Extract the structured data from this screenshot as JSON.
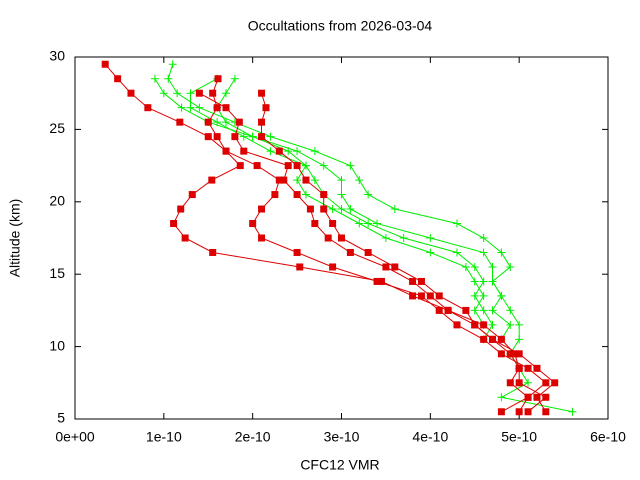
{
  "chart_data": {
    "type": "line",
    "title": "Occultations from 2026-03-04",
    "xlabel": "CFC12 VMR",
    "ylabel": "Altitude (km)",
    "xlim": [
      0,
      6e-10
    ],
    "ylim": [
      5,
      30
    ],
    "xticks": [
      {
        "value": 0,
        "label": "0e+00"
      },
      {
        "value": 1e-10,
        "label": "1e-10"
      },
      {
        "value": 2e-10,
        "label": "2e-10"
      },
      {
        "value": 3e-10,
        "label": "3e-10"
      },
      {
        "value": 4e-10,
        "label": "4e-10"
      },
      {
        "value": 5e-10,
        "label": "5e-10"
      },
      {
        "value": 6e-10,
        "label": "6e-10"
      }
    ],
    "yticks": [
      5,
      10,
      15,
      20,
      25,
      30
    ],
    "grid": false,
    "series": [
      {
        "color": "#00ee00",
        "marker": "plus",
        "x": [
          9e-11,
          1e-10,
          1.2e-10,
          1.5e-10,
          2e-10,
          2.5e-10,
          2.8e-10,
          3e-10,
          3e-10,
          3.1e-10,
          3.4e-10,
          4e-10,
          4.6e-10,
          4.7e-10,
          4.7e-10,
          4.8e-10,
          4.9e-10,
          5e-10,
          5e-10,
          4.9e-10,
          5e-10,
          5.1e-10,
          4.8e-10,
          5.6e-10
        ],
        "y": [
          28.5,
          27.5,
          26.5,
          25.5,
          24.5,
          23.5,
          22.5,
          21.5,
          20.5,
          19.5,
          18.5,
          17.5,
          16.5,
          15.5,
          14.5,
          13.5,
          12.5,
          11.5,
          10.5,
          9.5,
          8.5,
          7.5,
          6.5,
          5.5
        ]
      },
      {
        "color": "#00ee00",
        "marker": "plus",
        "x": [
          1.1e-10,
          1.05e-10,
          1.15e-10,
          1.4e-10,
          1.8e-10,
          2.2e-10,
          2.7e-10,
          3.1e-10,
          3.2e-10,
          3.3e-10,
          3.6e-10,
          4.3e-10,
          4.6e-10,
          4.8e-10,
          4.9e-10,
          4.7e-10,
          4.8e-10,
          4.7e-10,
          4.9e-10,
          4.8e-10
        ],
        "y": [
          29.5,
          28.5,
          27.5,
          26.5,
          25.5,
          24.5,
          23.5,
          22.5,
          21.5,
          20.5,
          19.5,
          18.5,
          17.5,
          16.5,
          15.5,
          14.5,
          13.5,
          12.5,
          11.5,
          10.5
        ]
      },
      {
        "color": "#00ee00",
        "marker": "plus",
        "x": [
          1.6e-10,
          1.3e-10,
          1.3e-10,
          1.6e-10,
          1.9e-10,
          2.2e-10,
          2.6e-10,
          2.7e-10,
          2.8e-10,
          3e-10,
          3.3e-10,
          3.7e-10,
          4.3e-10,
          4.5e-10,
          4.6e-10,
          4.5e-10,
          4.6e-10,
          4.7e-10,
          4.6e-10
        ],
        "y": [
          28.5,
          27.5,
          26.5,
          25.5,
          24.5,
          23.5,
          22.5,
          21.5,
          20.5,
          19.5,
          18.5,
          17.5,
          16.5,
          15.5,
          14.5,
          13.5,
          12.5,
          11.5,
          10.5
        ]
      },
      {
        "color": "#00ee00",
        "marker": "plus",
        "x": [
          1.8e-10,
          1.7e-10,
          1.6e-10,
          1.7e-10,
          2e-10,
          2.4e-10,
          2.6e-10,
          2.5e-10,
          2.6e-10,
          2.9e-10,
          3.2e-10,
          3.5e-10,
          4e-10,
          4.4e-10,
          4.5e-10,
          4.6e-10,
          4.5e-10,
          4.6e-10
        ],
        "y": [
          28.5,
          27.5,
          26.5,
          25.5,
          24.5,
          23.5,
          22.5,
          21.5,
          20.5,
          19.5,
          18.5,
          17.5,
          16.5,
          15.5,
          14.5,
          13.5,
          12.5,
          11.5
        ]
      },
      {
        "color": "#dd0000",
        "marker": "square",
        "x": [
          3.4e-11,
          4.8e-11,
          6.3e-11,
          8.2e-11,
          1.18e-10,
          1.5e-10,
          1.7e-10,
          1.86e-10,
          1.54e-10,
          1.32e-10,
          1.19e-10,
          1.11e-10,
          1.24e-10,
          1.55e-10,
          2.53e-10,
          3.45e-10,
          3.8e-10,
          4.2e-10,
          4.5e-10,
          4.7e-10,
          4.9e-10,
          5e-10,
          4.9e-10,
          5.1e-10,
          4.8e-10
        ],
        "y": [
          29.5,
          28.5,
          27.5,
          26.5,
          25.5,
          24.5,
          23.5,
          22.5,
          21.5,
          20.5,
          19.5,
          18.5,
          17.5,
          16.5,
          15.5,
          14.5,
          13.5,
          12.5,
          11.5,
          10.5,
          9.5,
          8.5,
          7.5,
          6.5,
          5.5
        ]
      },
      {
        "color": "#dd0000",
        "marker": "square",
        "x": [
          1.61e-10,
          1.55e-10,
          1.6e-10,
          1.5e-10,
          1.6e-10,
          1.7e-10,
          2.05e-10,
          2.3e-10,
          2.25e-10,
          2.1e-10,
          2e-10,
          2.1e-10,
          2.5e-10,
          2.9e-10,
          3.4e-10,
          3.9e-10,
          4.1e-10,
          4.3e-10,
          4.6e-10,
          4.8e-10,
          5.1e-10,
          5.3e-10,
          5.1e-10,
          5e-10
        ],
        "y": [
          28.5,
          27.5,
          26.5,
          25.5,
          24.5,
          23.5,
          22.5,
          21.5,
          20.5,
          19.5,
          18.5,
          17.5,
          16.5,
          15.5,
          14.5,
          13.5,
          12.5,
          11.5,
          10.5,
          9.5,
          8.5,
          7.5,
          6.5,
          5.5
        ]
      },
      {
        "color": "#dd0000",
        "marker": "square",
        "x": [
          2.1e-10,
          2.15e-10,
          2.1e-10,
          2.1e-10,
          2.3e-10,
          2.5e-10,
          2.6e-10,
          2.8e-10,
          2.8e-10,
          2.9e-10,
          3e-10,
          3.3e-10,
          3.6e-10,
          3.9e-10,
          4.1e-10,
          4.4e-10,
          4.5e-10,
          4.7e-10,
          5e-10,
          5.2e-10,
          5.4e-10,
          5.2e-10,
          5.3e-10
        ],
        "y": [
          27.5,
          26.5,
          25.5,
          24.5,
          23.5,
          22.5,
          21.5,
          20.5,
          19.5,
          18.5,
          17.5,
          16.5,
          15.5,
          14.5,
          13.5,
          12.5,
          11.5,
          10.5,
          9.5,
          8.5,
          7.5,
          6.5,
          5.5
        ]
      },
      {
        "color": "#dd0000",
        "marker": "square",
        "x": [
          1.4e-10,
          1.7e-10,
          1.85e-10,
          1.8e-10,
          1.9e-10,
          2.4e-10,
          2.35e-10,
          2.5e-10,
          2.65e-10,
          2.7e-10,
          2.85e-10,
          3.1e-10,
          3.5e-10,
          3.8e-10,
          4e-10,
          4.2e-10,
          4.6e-10,
          4.8e-10,
          4.95e-10,
          5e-10,
          5e-10,
          5.3e-10,
          5.1e-10
        ],
        "y": [
          27.5,
          26.5,
          25.5,
          24.5,
          23.5,
          22.5,
          21.5,
          20.5,
          19.5,
          18.5,
          17.5,
          16.5,
          15.5,
          14.5,
          13.5,
          12.5,
          11.5,
          10.5,
          9.5,
          8.5,
          7.5,
          6.5,
          5.5
        ]
      }
    ]
  }
}
